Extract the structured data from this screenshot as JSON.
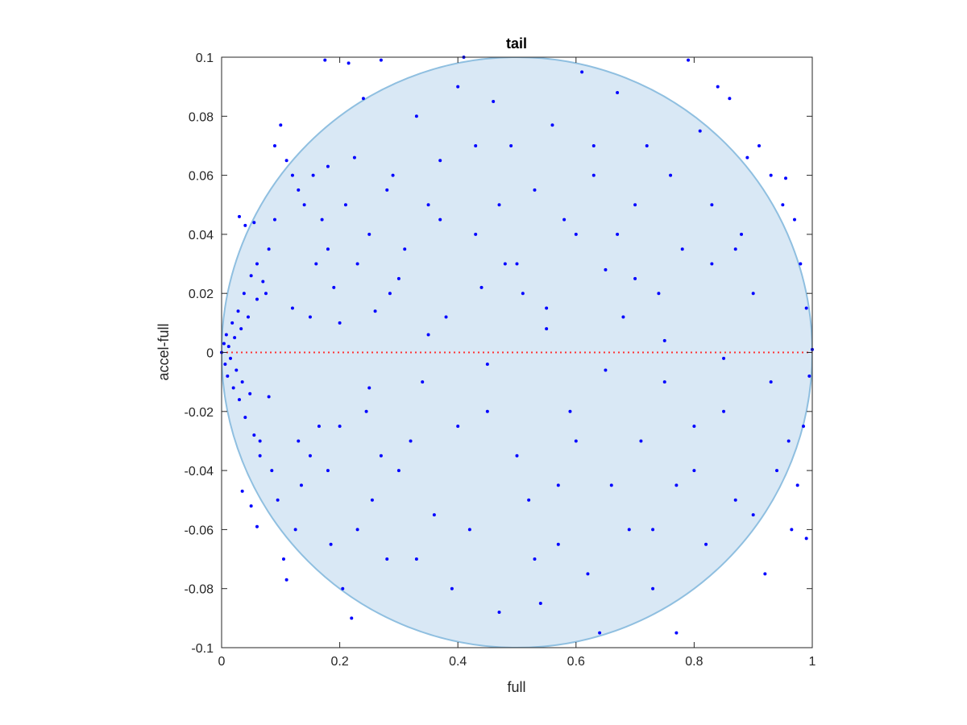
{
  "chart_data": {
    "type": "scatter",
    "title": "tail",
    "xlabel": "full",
    "ylabel": "accel-full",
    "xlim": [
      0,
      1
    ],
    "ylim": [
      -0.1,
      0.1
    ],
    "x_ticks": [
      "0",
      "0.2",
      "0.4",
      "0.6",
      "0.8",
      "1"
    ],
    "x_tick_values": [
      0,
      0.2,
      0.4,
      0.6,
      0.8,
      1
    ],
    "y_ticks": [
      "-0.1",
      "-0.08",
      "-0.06",
      "-0.04",
      "-0.02",
      "0",
      "0.02",
      "0.04",
      "0.06",
      "0.08",
      "0.1"
    ],
    "y_tick_values": [
      -0.1,
      -0.08,
      -0.06,
      -0.04,
      -0.02,
      0,
      0.02,
      0.04,
      0.06,
      0.08,
      0.1
    ],
    "grid": false,
    "legend": "none",
    "colors": {
      "points": "#0000ff",
      "region_fill": "#d9e8f5",
      "region_edge": "#8fbfe0",
      "zero_line": "#ff3333",
      "axes": "#262626"
    },
    "region": {
      "shape": "ellipse",
      "center_x": 0.5,
      "center_y": 0,
      "radius_x": 0.5,
      "radius_y": 0.1
    },
    "reference_line": {
      "y": 0,
      "style": "dotted"
    },
    "series": [
      {
        "points": [
          [
            0.0,
            0.0
          ],
          [
            0.004,
            0.003
          ],
          [
            0.006,
            -0.004
          ],
          [
            0.008,
            0.006
          ],
          [
            0.01,
            -0.008
          ],
          [
            0.012,
            0.002
          ],
          [
            0.015,
            -0.002
          ],
          [
            0.018,
            0.01
          ],
          [
            0.02,
            -0.012
          ],
          [
            0.022,
            0.005
          ],
          [
            0.025,
            -0.006
          ],
          [
            0.028,
            0.014
          ],
          [
            0.03,
            -0.016
          ],
          [
            0.033,
            0.008
          ],
          [
            0.035,
            -0.01
          ],
          [
            0.038,
            0.02
          ],
          [
            0.04,
            -0.022
          ],
          [
            0.045,
            0.012
          ],
          [
            0.048,
            -0.014
          ],
          [
            0.05,
            0.026
          ],
          [
            0.055,
            -0.028
          ],
          [
            0.06,
            0.018
          ],
          [
            0.065,
            -0.03
          ],
          [
            0.07,
            0.024
          ],
          [
            0.03,
            0.046
          ],
          [
            0.035,
            -0.047
          ],
          [
            0.04,
            0.043
          ],
          [
            0.05,
            -0.052
          ],
          [
            0.055,
            0.044
          ],
          [
            0.06,
            -0.059
          ],
          [
            0.06,
            0.03
          ],
          [
            0.065,
            -0.035
          ],
          [
            0.075,
            0.02
          ],
          [
            0.08,
            0.035
          ],
          [
            0.085,
            -0.04
          ],
          [
            0.09,
            0.045
          ],
          [
            0.09,
            0.07
          ],
          [
            0.095,
            -0.05
          ],
          [
            0.1,
            0.077
          ],
          [
            0.105,
            -0.07
          ],
          [
            0.11,
            0.065
          ],
          [
            0.11,
            -0.077
          ],
          [
            0.12,
            0.06
          ],
          [
            0.125,
            -0.06
          ],
          [
            0.13,
            0.055
          ],
          [
            0.135,
            -0.045
          ],
          [
            0.14,
            0.05
          ],
          [
            0.15,
            -0.035
          ],
          [
            0.155,
            0.06
          ],
          [
            0.16,
            0.03
          ],
          [
            0.165,
            -0.025
          ],
          [
            0.17,
            0.045
          ],
          [
            0.175,
            0.099
          ],
          [
            0.18,
            -0.04
          ],
          [
            0.18,
            0.063
          ],
          [
            0.185,
            -0.065
          ],
          [
            0.19,
            0.022
          ],
          [
            0.2,
            0.01
          ],
          [
            0.205,
            -0.08
          ],
          [
            0.21,
            0.05
          ],
          [
            0.215,
            0.098
          ],
          [
            0.22,
            -0.09
          ],
          [
            0.225,
            0.066
          ],
          [
            0.23,
            -0.06
          ],
          [
            0.24,
            0.086
          ],
          [
            0.245,
            -0.02
          ],
          [
            0.25,
            0.04
          ],
          [
            0.255,
            -0.05
          ],
          [
            0.26,
            0.014
          ],
          [
            0.27,
            0.099
          ],
          [
            0.28,
            -0.07
          ],
          [
            0.285,
            0.02
          ],
          [
            0.29,
            0.06
          ],
          [
            0.3,
            -0.04
          ],
          [
            0.31,
            0.035
          ],
          [
            0.32,
            -0.03
          ],
          [
            0.33,
            0.08
          ],
          [
            0.34,
            -0.01
          ],
          [
            0.35,
            0.05
          ],
          [
            0.36,
            -0.055
          ],
          [
            0.37,
            0.065
          ],
          [
            0.38,
            0.012
          ],
          [
            0.39,
            -0.08
          ],
          [
            0.4,
            0.09
          ],
          [
            0.41,
            0.1
          ],
          [
            0.42,
            -0.06
          ],
          [
            0.43,
            0.04
          ],
          [
            0.44,
            0.022
          ],
          [
            0.45,
            -0.02
          ],
          [
            0.46,
            0.085
          ],
          [
            0.47,
            -0.088
          ],
          [
            0.48,
            0.03
          ],
          [
            0.49,
            0.07
          ],
          [
            0.5,
            -0.035
          ],
          [
            0.51,
            0.02
          ],
          [
            0.52,
            -0.05
          ],
          [
            0.53,
            0.055
          ],
          [
            0.54,
            -0.085
          ],
          [
            0.55,
            0.015
          ],
          [
            0.56,
            0.077
          ],
          [
            0.57,
            -0.065
          ],
          [
            0.58,
            0.045
          ],
          [
            0.59,
            -0.02
          ],
          [
            0.6,
            0.04
          ],
          [
            0.61,
            0.095
          ],
          [
            0.62,
            -0.075
          ],
          [
            0.63,
            0.06
          ],
          [
            0.64,
            -0.095
          ],
          [
            0.65,
            0.028
          ],
          [
            0.66,
            -0.045
          ],
          [
            0.67,
            0.088
          ],
          [
            0.68,
            0.012
          ],
          [
            0.69,
            -0.06
          ],
          [
            0.7,
            0.05
          ],
          [
            0.71,
            -0.03
          ],
          [
            0.72,
            0.07
          ],
          [
            0.73,
            -0.08
          ],
          [
            0.74,
            0.02
          ],
          [
            0.75,
            -0.01
          ],
          [
            0.76,
            0.06
          ],
          [
            0.77,
            -0.095
          ],
          [
            0.78,
            0.035
          ],
          [
            0.79,
            0.099
          ],
          [
            0.8,
            -0.04
          ],
          [
            0.81,
            0.075
          ],
          [
            0.82,
            -0.065
          ],
          [
            0.83,
            0.03
          ],
          [
            0.84,
            0.09
          ],
          [
            0.85,
            -0.02
          ],
          [
            0.86,
            0.086
          ],
          [
            0.87,
            -0.05
          ],
          [
            0.88,
            0.04
          ],
          [
            0.89,
            0.066
          ],
          [
            0.9,
            -0.055
          ],
          [
            0.91,
            0.07
          ],
          [
            0.92,
            -0.075
          ],
          [
            0.93,
            0.06
          ],
          [
            0.94,
            -0.04
          ],
          [
            0.95,
            0.05
          ],
          [
            0.96,
            -0.03
          ],
          [
            0.97,
            0.045
          ],
          [
            0.975,
            -0.045
          ],
          [
            0.98,
            0.03
          ],
          [
            0.985,
            -0.025
          ],
          [
            0.99,
            0.015
          ],
          [
            0.995,
            -0.008
          ],
          [
            1.0,
            0.001
          ],
          [
            0.99,
            -0.063
          ],
          [
            0.955,
            0.059
          ],
          [
            0.965,
            -0.06
          ],
          [
            0.15,
            0.012
          ],
          [
            0.25,
            -0.012
          ],
          [
            0.35,
            0.006
          ],
          [
            0.45,
            -0.004
          ],
          [
            0.55,
            0.008
          ],
          [
            0.65,
            -0.006
          ],
          [
            0.75,
            0.004
          ],
          [
            0.85,
            -0.002
          ],
          [
            0.3,
            0.025
          ],
          [
            0.4,
            -0.025
          ],
          [
            0.5,
            0.03
          ],
          [
            0.6,
            -0.03
          ],
          [
            0.7,
            0.025
          ],
          [
            0.8,
            -0.025
          ],
          [
            0.9,
            0.02
          ],
          [
            0.2,
            -0.025
          ],
          [
            0.12,
            0.015
          ],
          [
            0.08,
            -0.015
          ],
          [
            0.33,
            -0.07
          ],
          [
            0.43,
            0.07
          ],
          [
            0.53,
            -0.07
          ],
          [
            0.63,
            0.07
          ],
          [
            0.73,
            -0.06
          ],
          [
            0.83,
            0.05
          ],
          [
            0.93,
            -0.01
          ],
          [
            0.23,
            0.03
          ],
          [
            0.13,
            -0.03
          ],
          [
            0.47,
            0.05
          ],
          [
            0.57,
            -0.045
          ],
          [
            0.67,
            0.04
          ],
          [
            0.77,
            -0.045
          ],
          [
            0.87,
            0.035
          ],
          [
            0.27,
            -0.035
          ],
          [
            0.37,
            0.045
          ],
          [
            0.18,
            0.035
          ],
          [
            0.28,
            0.055
          ]
        ]
      }
    ]
  }
}
